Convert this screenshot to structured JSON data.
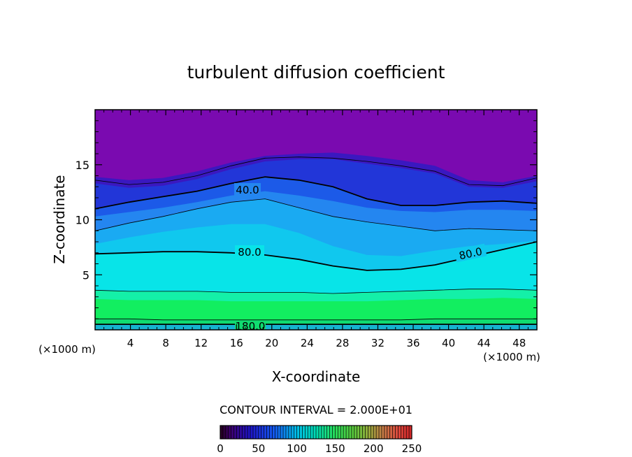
{
  "chart_data": {
    "type": "heatmap",
    "title": "turbulent diffusion coefficient",
    "xlabel": "X-coordinate",
    "ylabel": "Z-coordinate",
    "x_unit": "(×1000 m)",
    "x_unit_right": "(×1000 m)",
    "xlim": [
      0,
      50
    ],
    "ylim": [
      0,
      20
    ],
    "x_ticks": [
      "4",
      "8",
      "12",
      "16",
      "20",
      "24",
      "28",
      "32",
      "36",
      "40",
      "44",
      "48"
    ],
    "y_ticks": [
      "5",
      "10",
      "15"
    ],
    "contour_interval_text": "CONTOUR INTERVAL = 2.000E+01",
    "contour_labels": [
      "40.0",
      "80.0",
      "80.0",
      "180.0"
    ],
    "colorbar": {
      "min": 0,
      "max": 250,
      "ticks": [
        "0",
        "50",
        "100",
        "150",
        "200",
        "250"
      ]
    },
    "bands": [
      {
        "level": 0,
        "top": [
          19.9,
          19.9,
          19.9,
          19.9,
          19.9,
          19.9,
          19.9,
          19.9,
          19.9,
          19.9,
          19.9,
          19.9,
          19.9,
          19.9
        ],
        "color": "#7a0ab0"
      },
      {
        "level": 10,
        "top": [
          13.9,
          13.6,
          13.8,
          14.4,
          15.2,
          15.8,
          16.0,
          16.1,
          15.8,
          15.4,
          14.9,
          13.6,
          13.4,
          14.0
        ],
        "color": "#3a18c0"
      },
      {
        "level": 20,
        "top": [
          13.3,
          12.9,
          13.1,
          13.7,
          14.6,
          15.3,
          15.5,
          15.5,
          15.1,
          14.7,
          14.2,
          13.0,
          12.9,
          13.5
        ],
        "color": "#2236d8"
      },
      {
        "level": 30,
        "top": [
          11.0,
          11.6,
          12.1,
          12.6,
          13.3,
          13.9,
          13.6,
          13.0,
          11.9,
          11.3,
          11.3,
          11.6,
          11.7,
          11.5
        ],
        "color": "#1c5ae8"
      },
      {
        "level": 40,
        "top": [
          10.3,
          10.7,
          11.1,
          11.6,
          12.2,
          12.6,
          12.2,
          11.7,
          11.1,
          10.8,
          10.7,
          10.9,
          10.9,
          10.8
        ],
        "color": "#2486f0"
      },
      {
        "level": 60,
        "top": [
          9.0,
          9.7,
          10.3,
          11.0,
          11.6,
          11.9,
          11.1,
          10.3,
          9.8,
          9.4,
          9.0,
          9.2,
          9.1,
          9.0
        ],
        "color": "#1aaaf2"
      },
      {
        "level": 70,
        "top": [
          7.8,
          8.4,
          8.9,
          9.3,
          9.6,
          9.6,
          8.8,
          7.6,
          6.8,
          6.7,
          7.2,
          7.6,
          7.8,
          8.1
        ],
        "color": "#10c8ee"
      },
      {
        "level": 80,
        "top": [
          6.9,
          7.0,
          7.1,
          7.1,
          7.0,
          6.8,
          6.4,
          5.8,
          5.4,
          5.5,
          5.9,
          6.6,
          7.3,
          8.0
        ],
        "color": "#08e4e8"
      },
      {
        "level": 120,
        "top": [
          3.6,
          3.5,
          3.5,
          3.5,
          3.4,
          3.4,
          3.4,
          3.3,
          3.4,
          3.5,
          3.6,
          3.7,
          3.7,
          3.6
        ],
        "color": "#14f0a8"
      },
      {
        "level": 150,
        "top": [
          2.8,
          2.7,
          2.7,
          2.7,
          2.6,
          2.6,
          2.6,
          2.6,
          2.6,
          2.7,
          2.8,
          2.8,
          2.9,
          2.8
        ],
        "color": "#12ee60"
      },
      {
        "level": 180,
        "top": [
          1.0,
          1.0,
          0.9,
          0.9,
          0.9,
          0.9,
          0.9,
          0.9,
          0.9,
          0.9,
          1.0,
          1.0,
          1.0,
          1.0
        ],
        "color": "#10dc70"
      },
      {
        "level": 130,
        "top": [
          0.5,
          0.5,
          0.5,
          0.5,
          0.5,
          0.5,
          0.5,
          0.5,
          0.5,
          0.5,
          0.5,
          0.5,
          0.5,
          0.5
        ],
        "color": "#16b4d0"
      }
    ],
    "contours": [
      {
        "level": 40,
        "weight": "thick",
        "y": [
          11.0,
          11.6,
          12.1,
          12.6,
          13.3,
          13.9,
          13.6,
          13.0,
          11.9,
          11.3,
          11.3,
          11.6,
          11.7,
          11.5
        ]
      },
      {
        "level": 20,
        "weight": "thin",
        "y": [
          13.6,
          13.2,
          13.4,
          14.0,
          14.9,
          15.6,
          15.7,
          15.6,
          15.3,
          14.9,
          14.4,
          13.2,
          13.1,
          13.8
        ]
      },
      {
        "level": 60,
        "weight": "thin",
        "y": [
          9.0,
          9.7,
          10.3,
          11.0,
          11.6,
          11.9,
          11.1,
          10.3,
          9.8,
          9.4,
          9.0,
          9.2,
          9.1,
          9.0
        ]
      },
      {
        "level": 80,
        "weight": "thick",
        "y": [
          6.9,
          7.0,
          7.1,
          7.1,
          7.0,
          6.8,
          6.4,
          5.8,
          5.4,
          5.5,
          5.9,
          6.6,
          7.3,
          8.0
        ]
      },
      {
        "level": 100,
        "weight": "thin",
        "y": [
          3.6,
          3.5,
          3.5,
          3.5,
          3.4,
          3.4,
          3.4,
          3.3,
          3.4,
          3.5,
          3.6,
          3.7,
          3.7,
          3.6
        ]
      },
      {
        "level": 160,
        "weight": "thin",
        "y": [
          1.0,
          1.0,
          0.9,
          0.9,
          0.9,
          0.9,
          0.9,
          0.9,
          0.9,
          0.9,
          1.0,
          1.0,
          1.0,
          1.0
        ]
      },
      {
        "level": 180,
        "weight": "thick",
        "y": [
          0.5,
          0.5,
          0.5,
          0.5,
          0.5,
          0.5,
          0.5,
          0.5,
          0.5,
          0.5,
          0.5,
          0.5,
          0.5,
          0.5
        ]
      }
    ]
  }
}
